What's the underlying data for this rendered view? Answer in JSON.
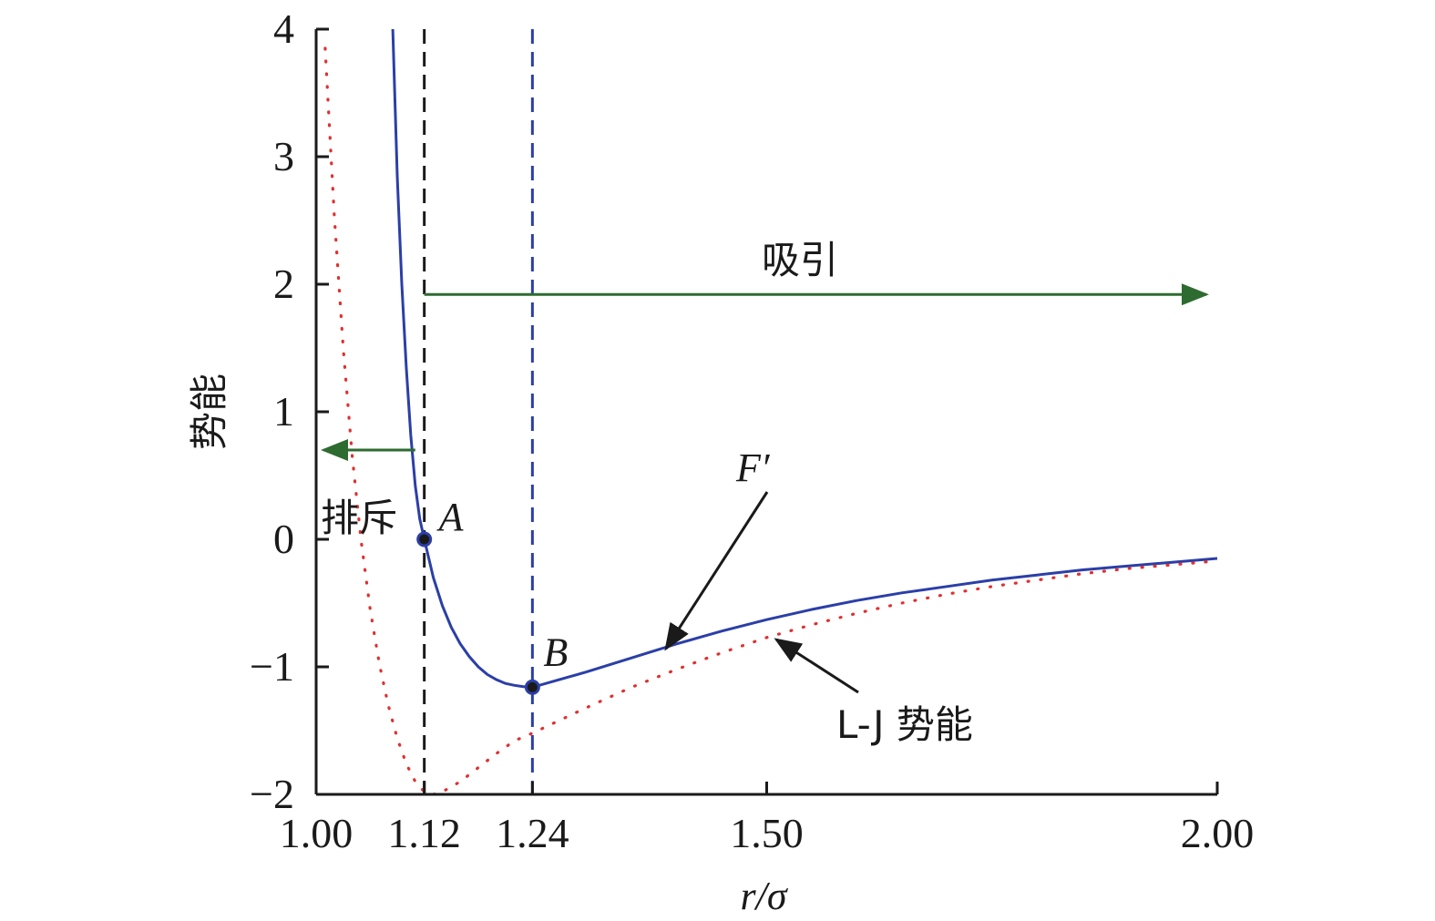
{
  "chart_data": {
    "type": "line",
    "xlabel": "r/σ",
    "ylabel": "势能",
    "xlim": [
      1.0,
      2.0
    ],
    "ylim": [
      -2,
      4
    ],
    "x_ticks": [
      1.0,
      1.12,
      1.24,
      1.5,
      2.0
    ],
    "x_tick_labels": [
      "1.00",
      "1.12",
      "1.24",
      "1.50",
      "2.00"
    ],
    "y_ticks": [
      -2,
      -1,
      0,
      1,
      2,
      3,
      4
    ],
    "y_tick_labels": [
      "−2",
      "−1",
      "0",
      "1",
      "2",
      "3",
      "4"
    ],
    "grid": false,
    "series": [
      {
        "name": "F′",
        "style": "solid",
        "color": "#2b3fa8",
        "x": [
          1.085,
          1.09,
          1.095,
          1.1,
          1.105,
          1.11,
          1.115,
          1.12,
          1.13,
          1.14,
          1.15,
          1.16,
          1.17,
          1.18,
          1.19,
          1.2,
          1.21,
          1.22,
          1.23,
          1.24,
          1.26,
          1.28,
          1.3,
          1.35,
          1.4,
          1.45,
          1.5,
          1.55,
          1.6,
          1.65,
          1.7,
          1.75,
          1.8,
          1.85,
          1.9,
          1.95,
          2.0
        ],
        "y": [
          4.0,
          2.85,
          2.0,
          1.35,
          0.82,
          0.42,
          0.16,
          0.0,
          -0.3,
          -0.52,
          -0.69,
          -0.82,
          -0.92,
          -1.0,
          -1.06,
          -1.1,
          -1.13,
          -1.145,
          -1.155,
          -1.16,
          -1.12,
          -1.08,
          -1.04,
          -0.93,
          -0.82,
          -0.72,
          -0.63,
          -0.55,
          -0.48,
          -0.42,
          -0.37,
          -0.32,
          -0.28,
          -0.24,
          -0.21,
          -0.18,
          -0.15
        ]
      },
      {
        "name": "L-J 势能",
        "style": "dotted",
        "color": "#e03030",
        "x": [
          1.01,
          1.02,
          1.03,
          1.04,
          1.05,
          1.06,
          1.07,
          1.08,
          1.09,
          1.1,
          1.11,
          1.12,
          1.13,
          1.14,
          1.16,
          1.18,
          1.2,
          1.22,
          1.24,
          1.27,
          1.3,
          1.35,
          1.4,
          1.45,
          1.5,
          1.55,
          1.6,
          1.65,
          1.7,
          1.75,
          1.8,
          1.85,
          1.9,
          1.95,
          2.0
        ],
        "y": [
          3.85,
          2.55,
          1.5,
          0.65,
          -0.02,
          -0.55,
          -0.97,
          -1.3,
          -1.56,
          -1.76,
          -1.9,
          -1.98,
          -2.0,
          -1.98,
          -1.9,
          -1.79,
          -1.68,
          -1.58,
          -1.52,
          -1.42,
          -1.32,
          -1.16,
          -1.02,
          -0.89,
          -0.77,
          -0.67,
          -0.58,
          -0.5,
          -0.43,
          -0.37,
          -0.32,
          -0.27,
          -0.23,
          -0.2,
          -0.17
        ]
      }
    ],
    "vertical_lines": [
      {
        "x": 1.12,
        "style": "dashed",
        "color": "#1a1a1a"
      },
      {
        "x": 1.24,
        "style": "dashed",
        "color": "#2b3fa8"
      }
    ],
    "points": [
      {
        "label": "A",
        "x": 1.12,
        "y": 0.0
      },
      {
        "label": "B",
        "x": 1.24,
        "y": -1.16
      }
    ],
    "annotations": [
      {
        "text": "吸引",
        "arrow_from": [
          1.12,
          1.92
        ],
        "arrow_to": [
          2.0,
          1.92
        ],
        "color": "#2e6b30"
      },
      {
        "text": "排斥",
        "arrow_from": [
          1.11,
          0.7
        ],
        "arrow_to": [
          1.0,
          0.7
        ],
        "color": "#2e6b30"
      },
      {
        "text": "F′",
        "arrow_from": [
          1.36,
          1.35
        ],
        "arrow_to": [
          1.29,
          -0.92
        ],
        "color": "#1a1a1a"
      },
      {
        "text": "L-J 势能",
        "arrow_from": [
          1.69,
          -1.37
        ],
        "arrow_to": [
          1.58,
          -0.92
        ],
        "color": "#1a1a1a"
      }
    ]
  }
}
